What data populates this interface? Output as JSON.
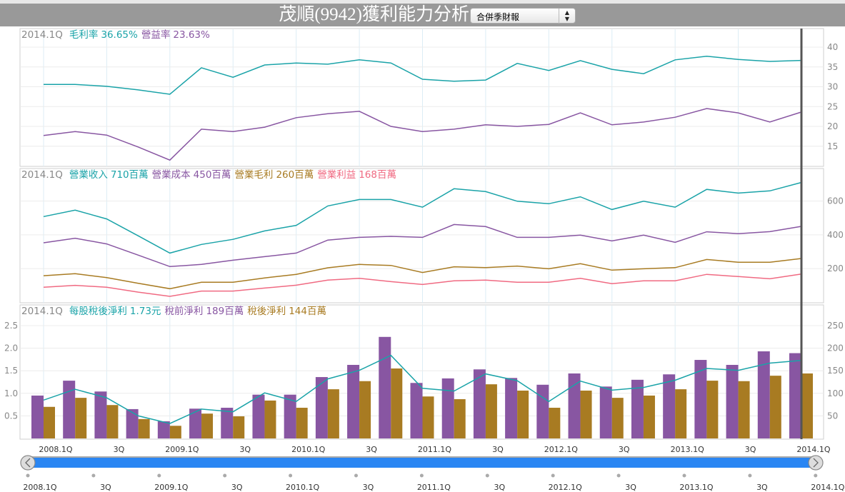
{
  "header": {
    "title": "茂順(9942)獲利能力分析",
    "report_select": "合併季財報",
    "select_icon": "up-down-arrows-icon"
  },
  "colors": {
    "teal": "#1aa3a8",
    "purple": "#8856a2",
    "gold": "#a87b22",
    "pink": "#f06a82",
    "cursor": "#555555"
  },
  "selected_quarter": "2014.1Q",
  "quarters": [
    "2008.1Q",
    "2008.2Q",
    "2008.3Q",
    "2008.4Q",
    "2009.1Q",
    "2009.2Q",
    "2009.3Q",
    "2009.4Q",
    "2010.1Q",
    "2010.2Q",
    "2010.3Q",
    "2010.4Q",
    "2011.1Q",
    "2011.2Q",
    "2011.3Q",
    "2011.4Q",
    "2012.1Q",
    "2012.2Q",
    "2012.3Q",
    "2012.4Q",
    "2013.1Q",
    "2013.2Q",
    "2013.3Q",
    "2013.4Q",
    "2014.1Q"
  ],
  "x_axis_labels": [
    "2008.1Q",
    "3Q",
    "2009.1Q",
    "3Q",
    "2010.1Q",
    "3Q",
    "2011.1Q",
    "3Q",
    "2012.1Q",
    "3Q",
    "2013.1Q",
    "3Q",
    "2014.1Q"
  ],
  "navigator": {
    "labels": [
      "2008.1Q",
      "3Q",
      "2009.1Q",
      "3Q",
      "2010.1Q",
      "3Q",
      "2011.1Q",
      "3Q",
      "2012.1Q",
      "3Q",
      "2013.1Q",
      "3Q",
      "2014.1Q"
    ],
    "left_icon": "chevron-left-icon",
    "right_icon": "chevron-right-icon",
    "range_fraction": [
      0,
      1
    ]
  },
  "chart_data": [
    {
      "type": "line",
      "title": "",
      "legend": {
        "period": "2014.1Q",
        "items": [
          {
            "label": "毛利率",
            "value": "36.65%",
            "color": "teal"
          },
          {
            "label": "營益率",
            "value": "23.63%",
            "color": "purple"
          }
        ]
      },
      "ylim": [
        10,
        44.3
      ],
      "yticks": [
        40,
        35,
        30,
        25,
        20,
        15
      ],
      "series": [
        {
          "name": "毛利率",
          "color": "teal",
          "values": [
            30.6,
            30.6,
            30.1,
            29.2,
            28.1,
            34.8,
            32.4,
            35.5,
            36.0,
            35.7,
            36.8,
            36.0,
            31.9,
            31.4,
            31.7,
            35.9,
            34.1,
            36.6,
            34.4,
            33.3,
            36.8,
            37.7,
            36.9,
            36.4,
            36.65
          ]
        },
        {
          "name": "營益率",
          "color": "purple",
          "values": [
            17.7,
            18.7,
            17.8,
            14.8,
            11.5,
            19.3,
            18.7,
            19.8,
            22.2,
            23.2,
            23.8,
            20.0,
            18.7,
            19.3,
            20.4,
            20.0,
            20.5,
            23.4,
            20.4,
            21.1,
            22.3,
            24.5,
            23.4,
            21.1,
            23.63
          ]
        }
      ]
    },
    {
      "type": "line",
      "legend": {
        "period": "2014.1Q",
        "items": [
          {
            "label": "營業收入",
            "value": "710百萬",
            "color": "teal"
          },
          {
            "label": "營業成本",
            "value": "450百萬",
            "color": "purple"
          },
          {
            "label": "營業毛利",
            "value": "260百萬",
            "color": "gold"
          },
          {
            "label": "營業利益",
            "value": "168百萬",
            "color": "pink"
          }
        ]
      },
      "ylim": [
        0,
        790
      ],
      "yticks": [
        600,
        400,
        200
      ],
      "series": [
        {
          "name": "營業收入",
          "color": "teal",
          "values": [
            508,
            546,
            494,
            394,
            292,
            343,
            373,
            423,
            456,
            571,
            609,
            609,
            564,
            673,
            656,
            599,
            584,
            625,
            550,
            599,
            564,
            669,
            647,
            660,
            710
          ]
        },
        {
          "name": "營業成本",
          "color": "purple",
          "values": [
            353,
            380,
            346,
            280,
            212,
            225,
            250,
            271,
            292,
            369,
            385,
            391,
            385,
            461,
            449,
            385,
            385,
            398,
            364,
            398,
            356,
            418,
            407,
            419,
            450
          ]
        },
        {
          "name": "營業毛利",
          "color": "gold",
          "values": [
            158,
            170,
            147,
            113,
            81,
            119,
            119,
            145,
            166,
            205,
            225,
            219,
            177,
            211,
            206,
            215,
            199,
            229,
            191,
            199,
            206,
            254,
            238,
            238,
            260
          ]
        },
        {
          "name": "營業利益",
          "color": "pink",
          "values": [
            90,
            101,
            90,
            61,
            36,
            67,
            67,
            85,
            102,
            132,
            143,
            123,
            106,
            128,
            132,
            119,
            119,
            143,
            111,
            128,
            128,
            166,
            153,
            140,
            168
          ]
        }
      ]
    },
    {
      "type": "bar",
      "legend": {
        "period": "2014.1Q",
        "items": [
          {
            "label": "每股稅後淨利",
            "value": "1.73元",
            "color": "teal"
          },
          {
            "label": "稅前淨利",
            "value": "189百萬",
            "color": "purple"
          },
          {
            "label": "稅後淨利",
            "value": "144百萬",
            "color": "gold"
          }
        ]
      },
      "ylim_left": [
        0,
        2.94
      ],
      "ylim_right": [
        0,
        294
      ],
      "yticks_left": [
        "2.5",
        "2.0",
        "1.5",
        "1.0",
        "0.5"
      ],
      "yticks_right": [
        250,
        200,
        150,
        100,
        50
      ],
      "series": [
        {
          "name": "稅前淨利",
          "type": "bar",
          "axis": "right",
          "color": "purple",
          "values": [
            95,
            128,
            104,
            65,
            38,
            66,
            68,
            97,
            97,
            136,
            163,
            225,
            123,
            133,
            153,
            134,
            119,
            144,
            115,
            130,
            142,
            174,
            163,
            193,
            189
          ]
        },
        {
          "name": "稅後淨利",
          "type": "bar",
          "axis": "right",
          "color": "gold",
          "values": [
            70,
            90,
            74,
            43,
            28,
            55,
            49,
            84,
            68,
            109,
            127,
            155,
            93,
            87,
            120,
            106,
            68,
            106,
            90,
            95,
            109,
            128,
            127,
            139,
            144
          ]
        },
        {
          "name": "每股稅後淨利",
          "type": "line",
          "axis": "left",
          "color": "teal",
          "values": [
            0.85,
            1.09,
            0.9,
            0.5,
            0.33,
            0.65,
            0.59,
            1.01,
            0.82,
            1.32,
            1.51,
            1.84,
            1.11,
            1.05,
            1.43,
            1.28,
            0.82,
            1.27,
            1.07,
            1.13,
            1.29,
            1.55,
            1.51,
            1.67,
            1.73
          ]
        }
      ]
    }
  ]
}
